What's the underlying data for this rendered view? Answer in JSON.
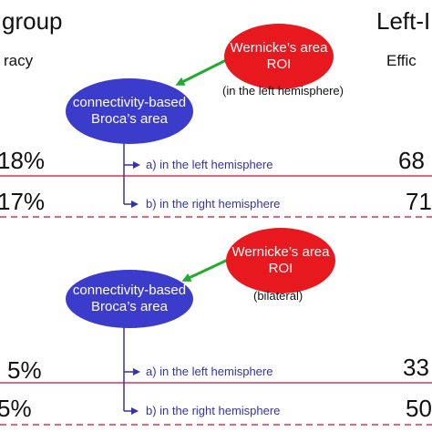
{
  "header": {
    "left_fragment": "group",
    "left_sub_fragment": "racy",
    "right_fragment": "Left-I",
    "right_sub_fragment": "Effic"
  },
  "panel_top": {
    "source_line1": "Wernicke’s area",
    "source_line2": "ROI",
    "source_note": "(in the left hemisphere)",
    "target_line1": "connectivity-based",
    "target_line2": "Broca’s area",
    "branch_a": "a) in the left hemisphere",
    "branch_b": "b) in the right hemisphere",
    "left_value_a": "18%",
    "left_value_b": "17%",
    "right_value_a": "68",
    "right_value_b": "71"
  },
  "panel_bottom": {
    "source_line1": "Wernicke’s area",
    "source_line2": "ROI",
    "source_note": "(bilateral)",
    "target_line1": "connectivity-based",
    "target_line2": "Broca’s area",
    "branch_a": "a) in the left hemisphere",
    "branch_b": "b) in the right hemisphere",
    "left_value_a": "5%",
    "left_value_b": "5%",
    "right_value_a": "33",
    "right_value_b": "50"
  },
  "colors": {
    "blue_ellipse": "#3c3ccc",
    "red_ellipse": "#e8191e",
    "green_arrow": "#22aa33",
    "branch_line": "#3333aa",
    "separator": "#c8102e"
  }
}
